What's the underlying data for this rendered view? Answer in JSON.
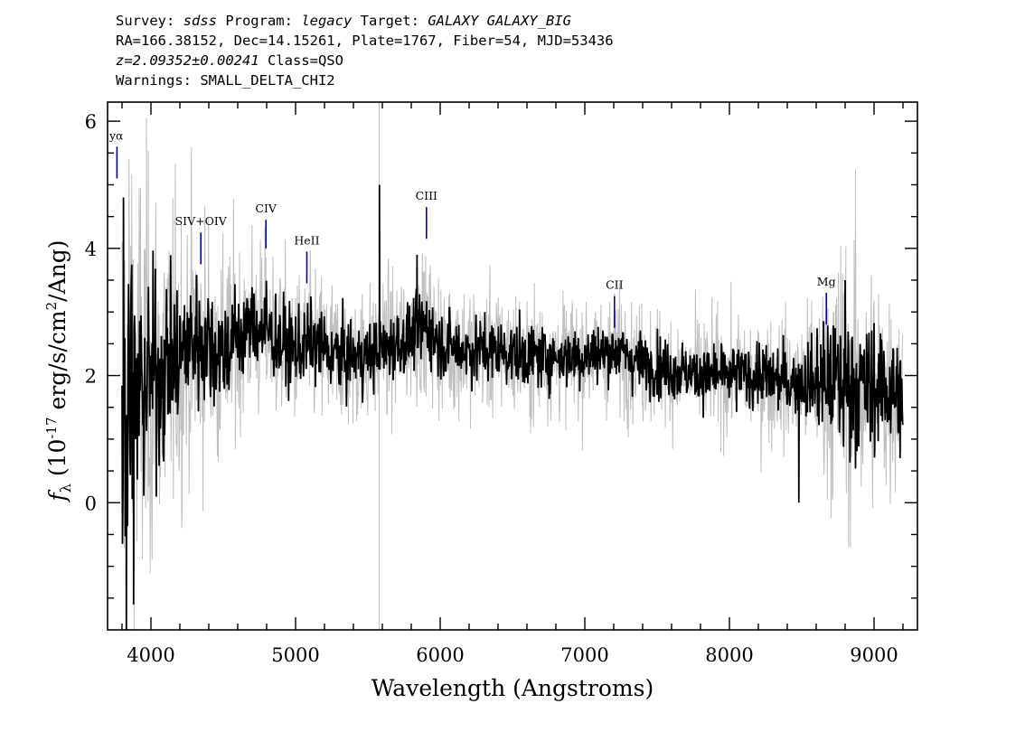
{
  "header": {
    "line1": {
      "survey_key": "Survey: ",
      "survey": "sdss",
      "program_key": " Program: ",
      "program": "legacy",
      "target_key": " Target: ",
      "target": "GALAXY GALAXY_BIG"
    },
    "line2": "RA=166.38152, Dec=14.15261, Plate=1767, Fiber=54, MJD=53436",
    "line3": {
      "z": "z=2.09352±0.00241",
      "cls": " Class=QSO"
    },
    "line4": "Warnings: SMALL_DELTA_CHI2"
  },
  "chart_data": {
    "type": "line",
    "title": "",
    "xlabel": "Wavelength (Angstroms)",
    "ylabel": "f_λ (10^-17 erg/s/cm^2/Ang)",
    "xlim": [
      3700,
      9300
    ],
    "ylim": [
      -2,
      6.3
    ],
    "x_ticks": [
      4000,
      5000,
      6000,
      7000,
      8000,
      9000
    ],
    "y_ticks": [
      0,
      2,
      4,
      6
    ],
    "grid": false,
    "colors": {
      "flux": "#000000",
      "error": "#bfbfbf",
      "line_marker": "#0000cc"
    },
    "series": [
      {
        "name": "flux",
        "x": [
          3800,
          3850,
          3900,
          3950,
          4000,
          4100,
          4200,
          4300,
          4400,
          4500,
          4600,
          4700,
          4800,
          4900,
          5000,
          5100,
          5200,
          5300,
          5400,
          5500,
          5600,
          5700,
          5800,
          5900,
          6000,
          6200,
          6400,
          6600,
          6800,
          7000,
          7200,
          7400,
          7600,
          7800,
          8000,
          8200,
          8400,
          8600,
          8800,
          9000,
          9100,
          9200
        ],
        "y": [
          1.0,
          2.2,
          1.5,
          1.9,
          2.0,
          2.1,
          2.3,
          2.6,
          2.5,
          2.4,
          2.6,
          2.8,
          2.7,
          2.5,
          2.4,
          2.5,
          2.4,
          2.3,
          2.3,
          2.3,
          2.4,
          2.5,
          2.6,
          2.8,
          2.5,
          2.4,
          2.4,
          2.3,
          2.3,
          2.3,
          2.4,
          2.2,
          2.1,
          2.0,
          2.0,
          2.0,
          1.9,
          1.9,
          1.9,
          1.8,
          1.8,
          1.7
        ],
        "spikes": [
          {
            "x": 3810,
            "y": 4.8
          },
          {
            "x": 3830,
            "y": -2.0
          },
          {
            "x": 3880,
            "y": -1.6
          },
          {
            "x": 5580,
            "y": 5.0
          },
          {
            "x": 5840,
            "y": 3.9
          },
          {
            "x": 8480,
            "y": 0.0
          },
          {
            "x": 8800,
            "y": 3.5
          },
          {
            "x": 9180,
            "y": 0.7
          },
          {
            "x": 9200,
            "y": 2.6
          }
        ]
      },
      {
        "name": "error",
        "x": [
          3800,
          3900,
          4000,
          4200,
          4400,
          4600,
          5000,
          5500,
          6000,
          7000,
          8000,
          8500,
          8800,
          9000,
          9200
        ],
        "y": [
          3.0,
          2.6,
          2.0,
          1.5,
          1.3,
          1.0,
          0.8,
          0.7,
          0.7,
          0.6,
          0.6,
          0.7,
          1.5,
          1.3,
          1.0
        ]
      }
    ],
    "lines": [
      {
        "label": "Lyα",
        "x": 3765,
        "y0": 5.1,
        "y1": 5.6
      },
      {
        "label": "SIV+OIV",
        "x": 4345,
        "y0": 3.75,
        "y1": 4.25
      },
      {
        "label": "CIV",
        "x": 4795,
        "y0": 4.0,
        "y1": 4.45
      },
      {
        "label": "HeII",
        "x": 5078,
        "y0": 3.45,
        "y1": 3.95
      },
      {
        "label": "CIII",
        "x": 5905,
        "y0": 4.15,
        "y1": 4.65
      },
      {
        "label": "CII",
        "x": 7205,
        "y0": 2.75,
        "y1": 3.25
      },
      {
        "label": "Mg",
        "x": 8670,
        "y0": 2.8,
        "y1": 3.3
      }
    ]
  }
}
